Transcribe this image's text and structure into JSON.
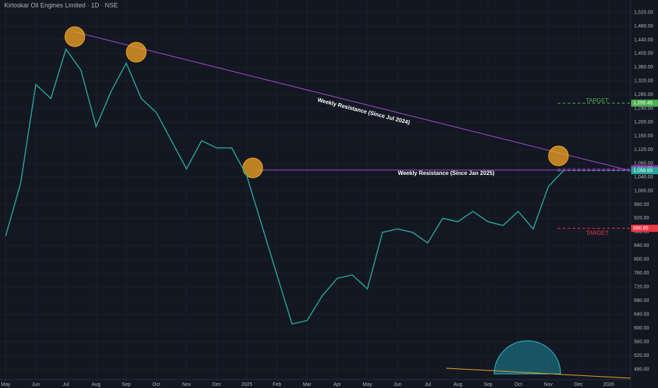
{
  "chart_data": {
    "type": "line",
    "title": "Kirloskar Oil Engines Limited · 1D · NSE",
    "categories": [
      "May",
      null,
      "Jun",
      null,
      "Jul",
      null,
      "Aug",
      null,
      "Sep",
      null,
      "Oct",
      null,
      "Nov",
      null,
      "Dec",
      null,
      "2025",
      null,
      "Feb",
      null,
      "Mar",
      null,
      "Apr",
      null,
      "May",
      null,
      "Jun",
      null,
      "Jul",
      null,
      "Aug",
      null,
      "Sep",
      null,
      "Oct",
      null,
      "Nov",
      null,
      "Dec",
      null,
      "2026"
    ],
    "series": [
      {
        "name": "Price",
        "color": "#26a69a",
        "values": [
          868,
          1023,
          1310,
          1269,
          1413,
          1351,
          1187,
          1290,
          1372,
          1269,
          1228,
          1146,
          1064,
          1146,
          1125,
          1125,
          1043,
          899,
          755,
          612,
          622,
          694,
          745,
          755,
          714,
          879,
          889,
          879,
          848,
          920,
          910,
          940,
          910,
          899,
          940,
          889,
          1012,
          1058.65,
          null,
          null,
          null
        ]
      }
    ],
    "ylim": [
      446,
      1556
    ],
    "yticks": [
      {
        "value": 480,
        "label": "480.00"
      },
      {
        "value": 520,
        "label": "520.00"
      },
      {
        "value": 560,
        "label": "560.00"
      },
      {
        "value": 600,
        "label": "600.00"
      },
      {
        "value": 640,
        "label": "640.00"
      },
      {
        "value": 680,
        "label": "680.00"
      },
      {
        "value": 720,
        "label": "720.00"
      },
      {
        "value": 760,
        "label": "760.00"
      },
      {
        "value": 800,
        "label": "800.00"
      },
      {
        "value": 840,
        "label": "840.00"
      },
      {
        "value": 880,
        "label": "880.00"
      },
      {
        "value": 920,
        "label": "920.00"
      },
      {
        "value": 960,
        "label": "960.00"
      },
      {
        "value": 1000,
        "label": "1,000.00"
      },
      {
        "value": 1040,
        "label": "1,040.00"
      },
      {
        "value": 1080,
        "label": "1,080.00"
      },
      {
        "value": 1120,
        "label": "1,120.00"
      },
      {
        "value": 1160,
        "label": "1,160.00"
      },
      {
        "value": 1200,
        "label": "1,200.00"
      },
      {
        "value": 1240,
        "label": "1,240.00"
      },
      {
        "value": 1280,
        "label": "1,280.00"
      },
      {
        "value": 1320,
        "label": "1,320.00"
      },
      {
        "value": 1360,
        "label": "1,360.00"
      },
      {
        "value": 1400,
        "label": "1,400.00"
      },
      {
        "value": 1440,
        "label": "1,440.00"
      },
      {
        "value": 1480,
        "label": "1,480.00"
      },
      {
        "value": 1520,
        "label": "1,520.00"
      }
    ],
    "grid": true,
    "price_labels": [
      {
        "value": 1255.45,
        "label": "1,255.45",
        "color": "#4caf50"
      },
      {
        "value": 1064.35,
        "label": "1,064.35",
        "color": "#9c27b0"
      },
      {
        "value": 1058.65,
        "label": "1,058.65",
        "color": "#26a69a"
      },
      {
        "value": 890.8,
        "label": "890.80",
        "color": "#f23645"
      }
    ],
    "annotations": [
      "Weekly Resistance (Since Jul 2024)",
      "Weekly Resistance (Since Jan 2025)",
      "TARGET",
      "TARGET"
    ]
  }
}
